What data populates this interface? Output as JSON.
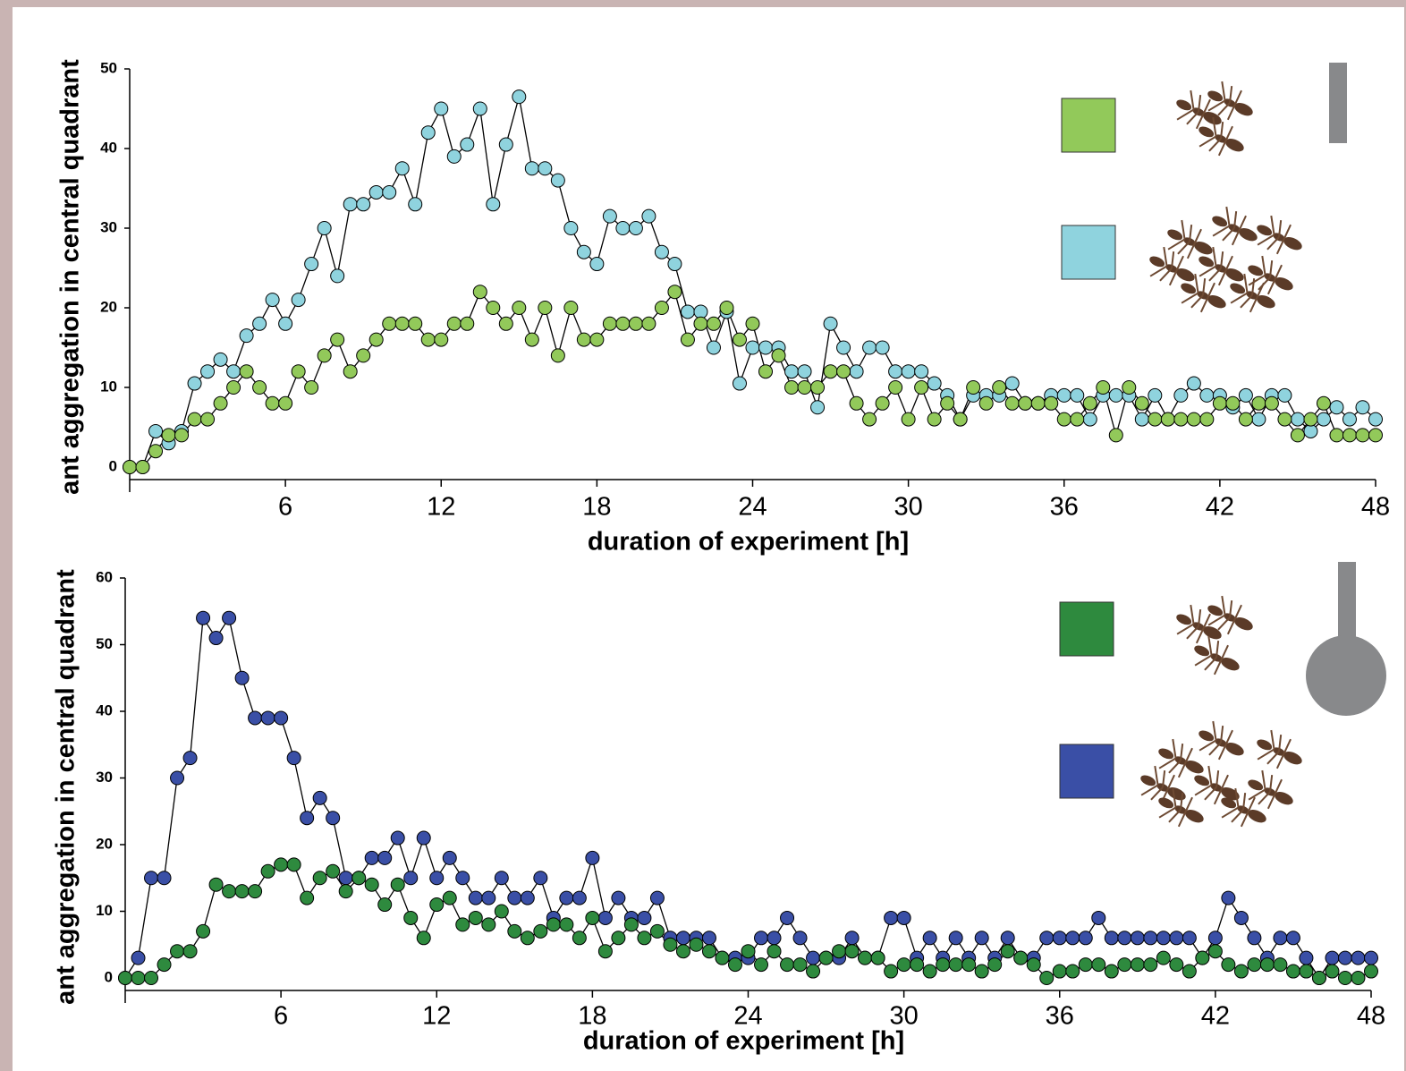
{
  "chart_data": [
    {
      "type": "line",
      "ylabel": "ant aggregation in central quadrant",
      "xlabel": "duration of experiment [h]",
      "xlim": [
        0,
        48
      ],
      "xticks": [
        6,
        12,
        18,
        24,
        30,
        36,
        42,
        48
      ],
      "ylim": [
        0,
        50
      ],
      "yticks": [
        0,
        10,
        20,
        30,
        40,
        50
      ],
      "x": [
        0,
        0.5,
        1,
        1.5,
        2,
        2.5,
        3,
        3.5,
        4,
        4.5,
        5,
        5.5,
        6,
        6.5,
        7,
        7.5,
        8,
        8.5,
        9,
        9.5,
        10,
        10.5,
        11,
        11.5,
        12,
        12.5,
        13,
        13.5,
        14,
        14.5,
        15,
        15.5,
        16,
        16.5,
        17,
        17.5,
        18,
        18.5,
        19,
        19.5,
        20,
        20.5,
        21,
        21.5,
        22,
        22.5,
        23,
        23.5,
        24,
        24.5,
        25,
        25.5,
        26,
        26.5,
        27,
        27.5,
        28,
        28.5,
        29,
        29.5,
        30,
        30.5,
        31,
        31.5,
        32,
        32.5,
        33,
        33.5,
        34,
        34.5,
        35,
        35.5,
        36,
        36.5,
        37,
        37.5,
        38,
        38.5,
        39,
        39.5,
        40,
        40.5,
        41,
        41.5,
        42,
        42.5,
        43,
        43.5,
        44,
        44.5,
        45,
        45.5,
        46,
        46.5,
        47,
        47.5,
        48
      ],
      "series": [
        {
          "color": "#8fd3de",
          "values": [
            0,
            0,
            4.5,
            3,
            4.5,
            10.5,
            12,
            13.5,
            12,
            16.5,
            18,
            21,
            18,
            21,
            25.5,
            30,
            24,
            33,
            33,
            34.5,
            34.5,
            37.5,
            33,
            42,
            45,
            39,
            40.5,
            45,
            33,
            40.5,
            46.5,
            37.5,
            37.5,
            36,
            30,
            27,
            25.5,
            31.5,
            30,
            30,
            31.5,
            27,
            25.5,
            19.5,
            19.5,
            15,
            19.5,
            10.5,
            15,
            15,
            15,
            12,
            12,
            7.5,
            18,
            15,
            12,
            15,
            15,
            12,
            12,
            12,
            10.5,
            9,
            6,
            9,
            9,
            9,
            10.5,
            8,
            8,
            9,
            9,
            9,
            6,
            9,
            9,
            9,
            6,
            9,
            6,
            9,
            10.5,
            9,
            9,
            7.5,
            9,
            6,
            9,
            9,
            6,
            4.5,
            6,
            7.5,
            6,
            7.5,
            6
          ]
        },
        {
          "color": "#92c95a",
          "values": [
            0,
            0,
            2,
            4,
            4,
            6,
            6,
            8,
            10,
            12,
            10,
            8,
            8,
            12,
            10,
            14,
            16,
            12,
            14,
            16,
            18,
            18,
            18,
            16,
            16,
            18,
            18,
            22,
            20,
            18,
            20,
            16,
            20,
            14,
            20,
            16,
            16,
            18,
            18,
            18,
            18,
            20,
            22,
            16,
            18,
            18,
            20,
            16,
            18,
            12,
            14,
            10,
            10,
            10,
            12,
            12,
            8,
            6,
            8,
            10,
            6,
            10,
            6,
            8,
            6,
            10,
            8,
            10,
            8,
            8,
            8,
            8,
            6,
            6,
            8,
            10,
            4,
            10,
            8,
            6,
            6,
            6,
            6,
            6,
            8,
            8,
            6,
            8,
            8,
            6,
            4,
            6,
            8,
            4,
            4,
            4,
            4
          ]
        }
      ]
    },
    {
      "type": "line",
      "ylabel": "ant aggregation in central quadrant",
      "xlabel": "duration of experiment [h]",
      "xlim": [
        0,
        48
      ],
      "xticks": [
        6,
        12,
        18,
        24,
        30,
        36,
        42,
        48
      ],
      "ylim": [
        0,
        60
      ],
      "yticks": [
        0,
        10,
        20,
        30,
        40,
        50,
        60
      ],
      "x": [
        0,
        0.5,
        1,
        1.5,
        2,
        2.5,
        3,
        3.5,
        4,
        4.5,
        5,
        5.5,
        6,
        6.5,
        7,
        7.5,
        8,
        8.5,
        9,
        9.5,
        10,
        10.5,
        11,
        11.5,
        12,
        12.5,
        13,
        13.5,
        14,
        14.5,
        15,
        15.5,
        16,
        16.5,
        17,
        17.5,
        18,
        18.5,
        19,
        19.5,
        20,
        20.5,
        21,
        21.5,
        22,
        22.5,
        23,
        23.5,
        24,
        24.5,
        25,
        25.5,
        26,
        26.5,
        27,
        27.5,
        28,
        28.5,
        29,
        29.5,
        30,
        30.5,
        31,
        31.5,
        32,
        32.5,
        33,
        33.5,
        34,
        34.5,
        35,
        35.5,
        36,
        36.5,
        37,
        37.5,
        38,
        38.5,
        39,
        39.5,
        40,
        40.5,
        41,
        41.5,
        42,
        42.5,
        43,
        43.5,
        44,
        44.5,
        45,
        45.5,
        46,
        46.5,
        47,
        47.5,
        48
      ],
      "series": [
        {
          "color": "#3a4fa6",
          "values": [
            0,
            3,
            15,
            15,
            30,
            33,
            54,
            51,
            54,
            45,
            39,
            39,
            39,
            33,
            24,
            27,
            24,
            15,
            15,
            18,
            18,
            21,
            15,
            21,
            15,
            18,
            15,
            12,
            12,
            15,
            12,
            12,
            15,
            9,
            12,
            12,
            18,
            9,
            12,
            9,
            9,
            12,
            6,
            6,
            6,
            6,
            3,
            3,
            3,
            6,
            6,
            9,
            6,
            3,
            3,
            3,
            6,
            3,
            3,
            9,
            9,
            3,
            6,
            3,
            6,
            3,
            6,
            3,
            6,
            3,
            3,
            6,
            6,
            6,
            6,
            9,
            6,
            6,
            6,
            6,
            6,
            6,
            6,
            3,
            6,
            12,
            9,
            6,
            3,
            6,
            6,
            3,
            0,
            3,
            3,
            3,
            3
          ]
        },
        {
          "color": "#2e8a3e",
          "values": [
            0,
            0,
            0,
            2,
            4,
            4,
            7,
            14,
            13,
            13,
            13,
            16,
            17,
            17,
            12,
            15,
            16,
            13,
            15,
            14,
            11,
            14,
            9,
            6,
            11,
            12,
            8,
            9,
            8,
            10,
            7,
            6,
            7,
            8,
            8,
            6,
            9,
            4,
            6,
            8,
            6,
            7,
            5,
            4,
            5,
            4,
            3,
            2,
            4,
            2,
            4,
            2,
            2,
            1,
            3,
            4,
            4,
            3,
            3,
            1,
            2,
            2,
            1,
            2,
            2,
            2,
            1,
            2,
            4,
            3,
            2,
            0,
            1,
            1,
            2,
            2,
            1,
            2,
            2,
            2,
            3,
            2,
            1,
            3,
            4,
            2,
            1,
            2,
            2,
            2,
            1,
            1,
            0,
            1,
            0,
            0,
            1
          ]
        }
      ]
    }
  ]
}
